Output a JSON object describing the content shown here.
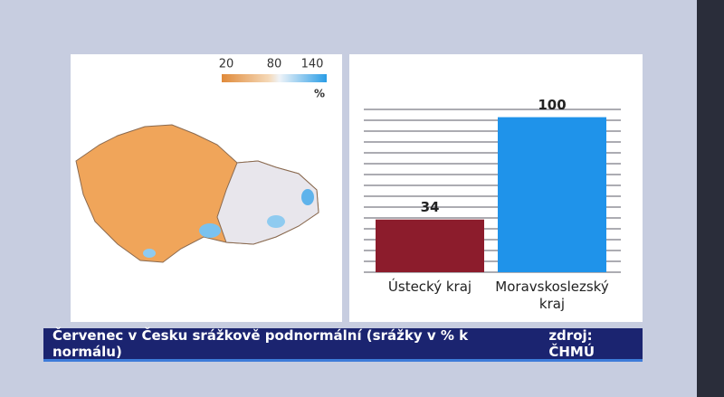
{
  "chart_data": {
    "type": "bar",
    "categories": [
      "Ústecký kraj",
      "Moravskoslezský kraj"
    ],
    "values": [
      34,
      100
    ],
    "colors": [
      "#8c1c2c",
      "#1f93ea"
    ],
    "ylim": [
      0,
      105
    ],
    "yticks": [
      0,
      7,
      14,
      21,
      28,
      35,
      42,
      49,
      56,
      63,
      70,
      77,
      84,
      91,
      98,
      105
    ],
    "grid": true
  },
  "map": {
    "scale_ticks": [
      20,
      80,
      140
    ],
    "unit": "%"
  },
  "caption": {
    "title": "Červenec v Česku srážkově podnormální (srážky v % k normálu)",
    "source": "zdroj: ČHMÚ"
  }
}
